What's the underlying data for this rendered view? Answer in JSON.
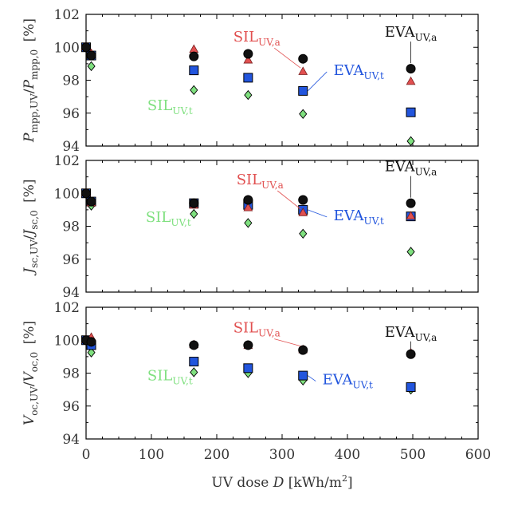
{
  "chart_data": {
    "type": "scatter",
    "x_axis": {
      "label_prefix": "UV dose ",
      "label_var": "D",
      "label_unit_open": " [kWh/m",
      "label_unit_sup": "2",
      "label_unit_close": "]",
      "range": [
        0,
        600
      ],
      "ticks": [
        "0",
        "100",
        "200",
        "300",
        "400",
        "500",
        "600"
      ]
    },
    "colors": {
      "EVA_a": "#111111",
      "SIL_a": "#e15050",
      "EVA_t": "#2255dd",
      "SIL_t": "#7fe07f"
    },
    "panels": [
      {
        "ylabel": {
          "num_var": "P",
          "num_sub": "mpp,UV",
          "sep": "/",
          "den_var": "P",
          "den_sub": "mpp,0",
          "unit": "[%]"
        },
        "ylim": [
          94,
          102
        ],
        "yticks": [
          "94",
          "96",
          "98",
          "100",
          "102"
        ],
        "series": [
          {
            "name": "EVA_a",
            "marker": "circle",
            "x": [
              0,
              8,
              165,
              248,
              332,
              497
            ],
            "y": [
              100.0,
              99.5,
              99.45,
              99.6,
              99.3,
              98.7
            ]
          },
          {
            "name": "SIL_a",
            "marker": "triangle",
            "x": [
              0,
              8,
              165,
              248,
              332,
              497
            ],
            "y": [
              100.0,
              99.6,
              99.85,
              99.2,
              98.5,
              97.9
            ]
          },
          {
            "name": "EVA_t",
            "marker": "square",
            "x": [
              0,
              8,
              165,
              248,
              332,
              497
            ],
            "y": [
              100.0,
              99.5,
              98.6,
              98.15,
              97.35,
              96.05
            ]
          },
          {
            "name": "SIL_t",
            "marker": "diamond",
            "x": [
              0,
              8,
              165,
              248,
              332,
              497
            ],
            "y": [
              100.0,
              98.85,
              97.4,
              97.1,
              95.95,
              94.3
            ]
          }
        ],
        "annotations": [
          {
            "main": "EVA",
            "sub": "UV,a",
            "series": "EVA_a"
          },
          {
            "main": "SIL",
            "sub": "UV,a",
            "series": "SIL_a"
          },
          {
            "main": "EVA",
            "sub": "UV,t",
            "series": "EVA_t"
          },
          {
            "main": "SIL",
            "sub": "UV,t",
            "series": "SIL_t"
          }
        ]
      },
      {
        "ylabel": {
          "num_var": "J",
          "num_sub": "sc,UV",
          "sep": "/",
          "den_var": "J",
          "den_sub": "sc,0",
          "unit": "[%]"
        },
        "ylim": [
          94,
          102
        ],
        "yticks": [
          "94",
          "96",
          "98",
          "100",
          "102"
        ],
        "series": [
          {
            "name": "EVA_a",
            "marker": "circle",
            "x": [
              0,
              8,
              165,
              248,
              332,
              497
            ],
            "y": [
              100.0,
              99.5,
              99.4,
              99.6,
              99.6,
              99.4
            ]
          },
          {
            "name": "SIL_a",
            "marker": "triangle",
            "x": [
              0,
              8,
              165,
              248,
              332,
              497
            ],
            "y": [
              100.0,
              99.4,
              99.25,
              99.1,
              98.8,
              98.6
            ]
          },
          {
            "name": "EVA_t",
            "marker": "square",
            "x": [
              0,
              8,
              165,
              248,
              332,
              497
            ],
            "y": [
              100.0,
              99.5,
              99.4,
              99.3,
              99.0,
              98.6
            ]
          },
          {
            "name": "SIL_t",
            "marker": "diamond",
            "x": [
              0,
              8,
              165,
              248,
              332,
              497
            ],
            "y": [
              100.0,
              99.25,
              98.75,
              98.2,
              97.55,
              96.45
            ]
          }
        ],
        "annotations": [
          {
            "main": "EVA",
            "sub": "UV,a",
            "series": "EVA_a"
          },
          {
            "main": "SIL",
            "sub": "UV,a",
            "series": "SIL_a"
          },
          {
            "main": "EVA",
            "sub": "UV,t",
            "series": "EVA_t"
          },
          {
            "main": "SIL",
            "sub": "UV,t",
            "series": "SIL_t"
          }
        ]
      },
      {
        "ylabel": {
          "num_var": "V",
          "num_sub": "oc,UV",
          "sep": "/",
          "den_var": "V",
          "den_sub": "oc,0",
          "unit": "[%]"
        },
        "ylim": [
          94,
          102
        ],
        "yticks": [
          "94",
          "96",
          "98",
          "100",
          "102"
        ],
        "series": [
          {
            "name": "EVA_a",
            "marker": "circle",
            "x": [
              0,
              8,
              165,
              248,
              332,
              497
            ],
            "y": [
              100.0,
              99.9,
              99.7,
              99.7,
              99.4,
              99.15
            ]
          },
          {
            "name": "SIL_a",
            "marker": "triangle",
            "x": [
              0,
              8,
              165,
              248,
              332,
              497
            ],
            "y": [
              100.0,
              100.15,
              99.7,
              99.65,
              99.4,
              99.2
            ]
          },
          {
            "name": "EVA_t",
            "marker": "square",
            "x": [
              0,
              8,
              165,
              248,
              332,
              497
            ],
            "y": [
              100.0,
              99.7,
              98.7,
              98.3,
              97.85,
              97.15
            ]
          },
          {
            "name": "SIL_t",
            "marker": "diamond",
            "x": [
              0,
              8,
              165,
              248,
              332,
              497
            ],
            "y": [
              100.0,
              99.25,
              98.05,
              98.0,
              97.55,
              97.0
            ]
          }
        ],
        "annotations": [
          {
            "main": "EVA",
            "sub": "UV,a",
            "series": "EVA_a"
          },
          {
            "main": "SIL",
            "sub": "UV,a",
            "series": "SIL_a"
          },
          {
            "main": "EVA",
            "sub": "UV,t",
            "series": "EVA_t"
          },
          {
            "main": "SIL",
            "sub": "UV,t",
            "series": "SIL_t"
          }
        ]
      }
    ]
  }
}
